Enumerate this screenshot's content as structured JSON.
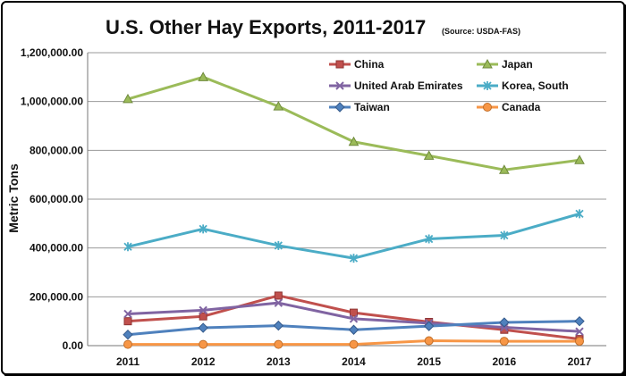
{
  "chart_data": {
    "type": "line",
    "title": "U.S. Other Hay Exports, 2011-2017",
    "subtitle": "(Source: USDA-FAS)",
    "ylabel": "Metric Tons",
    "xlabel": "",
    "categories": [
      "2011",
      "2012",
      "2013",
      "2014",
      "2015",
      "2016",
      "2017"
    ],
    "ylim": [
      0,
      1200000
    ],
    "yticks": [
      0,
      200000,
      400000,
      600000,
      800000,
      1000000,
      1200000
    ],
    "ytick_labels": [
      "0.00",
      "200,000.00",
      "400,000.00",
      "600,000.00",
      "800,000.00",
      "1,000,000.00",
      "1,200,000.00"
    ],
    "grid": true,
    "legend_position": "top-right",
    "series": [
      {
        "name": "China",
        "color": "#C0504D",
        "marker": "square",
        "values": [
          100000,
          120000,
          205000,
          135000,
          97000,
          65000,
          27000
        ]
      },
      {
        "name": "Japan",
        "color": "#9BBB59",
        "marker": "triangle",
        "values": [
          1010000,
          1100000,
          980000,
          835000,
          778000,
          720000,
          760000
        ]
      },
      {
        "name": "United Arab Emirates",
        "color": "#8064A2",
        "marker": "x",
        "values": [
          130000,
          145000,
          175000,
          110000,
          92000,
          75000,
          58000
        ]
      },
      {
        "name": "Korea, South",
        "color": "#4BACC6",
        "marker": "star",
        "values": [
          405000,
          478000,
          410000,
          358000,
          437000,
          452000,
          540000
        ]
      },
      {
        "name": "Taiwan",
        "color": "#4F81BD",
        "marker": "diamond",
        "values": [
          45000,
          73000,
          82000,
          65000,
          80000,
          95000,
          100000
        ]
      },
      {
        "name": "Canada",
        "color": "#F79646",
        "marker": "circle",
        "values": [
          5000,
          5000,
          5000,
          5000,
          20000,
          18000,
          18000
        ]
      }
    ]
  }
}
